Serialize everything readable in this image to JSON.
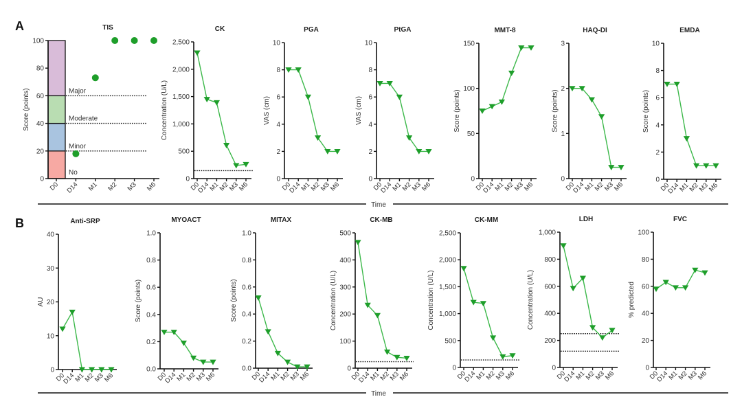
{
  "panels": [
    {
      "letter": "A",
      "time_label": "Time"
    },
    {
      "letter": "B",
      "time_label": "Time"
    }
  ],
  "colors": {
    "series": "#1e9e2a",
    "line": "#3cb84a",
    "axis": "#111111",
    "band_no": "#f7a9a3",
    "band_minor": "#a9c4e0",
    "band_moderate": "#b9ddb2",
    "band_major": "#d9bcd9"
  },
  "chart_data": [
    {
      "id": "tis",
      "panel": 0,
      "type": "scatter",
      "title": "TIS",
      "ylabel": "Score (points)",
      "ylim": [
        0,
        100
      ],
      "yticks": [
        "0",
        "20",
        "40",
        "60",
        "80",
        "100"
      ],
      "ytick_values": [
        0,
        20,
        40,
        60,
        80,
        100
      ],
      "categories": [
        "D0",
        "D14",
        "M1",
        "M2",
        "M3",
        "M6"
      ],
      "values": [
        null,
        18,
        73,
        100,
        100,
        100
      ],
      "marker": "circle",
      "bands": [
        {
          "label": "No",
          "from": 0,
          "to": 20,
          "color_key": "band_no"
        },
        {
          "label": "Minor",
          "from": 20,
          "to": 40,
          "color_key": "band_minor"
        },
        {
          "label": "Moderate",
          "from": 40,
          "to": 60,
          "color_key": "band_moderate"
        },
        {
          "label": "Major",
          "from": 60,
          "to": 100,
          "color_key": "band_major"
        }
      ],
      "reference_lines": [
        20,
        40,
        60
      ]
    },
    {
      "id": "ck",
      "panel": 0,
      "type": "line",
      "title": "CK",
      "ylabel": "Concentration (U/L)",
      "ylim": [
        0,
        2500
      ],
      "yticks": [
        "0",
        "500",
        "1,000",
        "1,500",
        "2,000",
        "2,500"
      ],
      "ytick_values": [
        0,
        500,
        1000,
        1500,
        2000,
        2500
      ],
      "categories": [
        "D0",
        "D14",
        "M1",
        "M2",
        "M3",
        "M6"
      ],
      "values": [
        2300,
        1450,
        1390,
        610,
        240,
        260
      ],
      "reference_lines": [
        145
      ]
    },
    {
      "id": "pga",
      "panel": 0,
      "type": "line",
      "title": "PGA",
      "ylabel": "VAS (cm)",
      "ylim": [
        0,
        10
      ],
      "yticks": [
        "0",
        "2",
        "4",
        "6",
        "8",
        "10"
      ],
      "ytick_values": [
        0,
        2,
        4,
        6,
        8,
        10
      ],
      "categories": [
        "D0",
        "D14",
        "M1",
        "M2",
        "M3",
        "M6"
      ],
      "values": [
        8,
        8,
        6,
        3,
        2,
        2
      ],
      "reference_lines": []
    },
    {
      "id": "ptga",
      "panel": 0,
      "type": "line",
      "title": "PtGA",
      "ylabel": "VAS (cm)",
      "ylim": [
        0,
        10
      ],
      "yticks": [
        "0",
        "2",
        "4",
        "6",
        "8",
        "10"
      ],
      "ytick_values": [
        0,
        2,
        4,
        6,
        8,
        10
      ],
      "categories": [
        "D0",
        "D14",
        "M1",
        "M2",
        "M3",
        "M6"
      ],
      "values": [
        7,
        7,
        6,
        3,
        2,
        2
      ],
      "reference_lines": []
    },
    {
      "id": "mmt8",
      "panel": 0,
      "type": "line",
      "title": "MMT-8",
      "ylabel": "Score (points)",
      "ylim": [
        0,
        150
      ],
      "yticks": [
        "0",
        "50",
        "100",
        "150"
      ],
      "ytick_values": [
        0,
        50,
        100,
        150
      ],
      "categories": [
        "D0",
        "D14",
        "M1",
        "M2",
        "M3",
        "M6"
      ],
      "values": [
        75,
        80,
        85,
        117,
        145,
        145
      ],
      "reference_lines": []
    },
    {
      "id": "haqdi",
      "panel": 0,
      "type": "line",
      "title": "HAQ-DI",
      "ylabel": "Score (points)",
      "ylim": [
        0,
        3
      ],
      "yticks": [
        "0",
        "1",
        "2",
        "3"
      ],
      "ytick_values": [
        0,
        1,
        2,
        3
      ],
      "categories": [
        "D0",
        "D14",
        "M1",
        "M2",
        "M3",
        "M6"
      ],
      "values": [
        2.0,
        2.0,
        1.75,
        1.375,
        0.25,
        0.25
      ],
      "reference_lines": []
    },
    {
      "id": "emda",
      "panel": 0,
      "type": "line",
      "title": "EMDA",
      "ylabel": "Score (points)",
      "ylim": [
        0,
        10
      ],
      "yticks": [
        "0",
        "2",
        "4",
        "6",
        "8",
        "10"
      ],
      "ytick_values": [
        0,
        2,
        4,
        6,
        8,
        10
      ],
      "categories": [
        "D0",
        "D14",
        "M1",
        "M2",
        "M3",
        "M6"
      ],
      "values": [
        7,
        7,
        3,
        1,
        1,
        1
      ],
      "reference_lines": []
    },
    {
      "id": "antisrp",
      "panel": 1,
      "type": "line",
      "title": "Anti-SRP",
      "ylabel": "AU",
      "ylim": [
        0,
        40
      ],
      "yticks": [
        "0",
        "10",
        "20",
        "30",
        "40"
      ],
      "ytick_values": [
        0,
        10,
        20,
        30,
        40
      ],
      "categories": [
        "D0",
        "D14",
        "M1",
        "M2",
        "M3",
        "M6"
      ],
      "values": [
        12,
        17,
        0,
        0,
        0,
        0
      ],
      "reference_lines": []
    },
    {
      "id": "myoact",
      "panel": 1,
      "type": "line",
      "title": "MYOACT",
      "ylabel": "Score (points)",
      "ylim": [
        0,
        1.0
      ],
      "yticks": [
        "0.0",
        "0.2",
        "0.4",
        "0.6",
        "0.8",
        "1.0"
      ],
      "ytick_values": [
        0,
        0.2,
        0.4,
        0.6,
        0.8,
        1.0
      ],
      "categories": [
        "D0",
        "D14",
        "M1",
        "M2",
        "M3",
        "M6"
      ],
      "values": [
        0.27,
        0.27,
        0.19,
        0.08,
        0.05,
        0.05
      ],
      "reference_lines": []
    },
    {
      "id": "mitax",
      "panel": 1,
      "type": "line",
      "title": "MITAX",
      "ylabel": "Score (points)",
      "ylim": [
        0,
        1.0
      ],
      "yticks": [
        "0.0",
        "0.2",
        "0.4",
        "0.6",
        "0.8",
        "1.0"
      ],
      "ytick_values": [
        0,
        0.2,
        0.4,
        0.6,
        0.8,
        1.0
      ],
      "categories": [
        "D0",
        "D14",
        "M1",
        "M2",
        "M3",
        "M6"
      ],
      "values": [
        0.52,
        0.27,
        0.11,
        0.045,
        0.01,
        0.01
      ],
      "reference_lines": []
    },
    {
      "id": "ckmb",
      "panel": 1,
      "type": "line",
      "title": "CK-MB",
      "ylabel": "Concentration (U/L)",
      "ylim": [
        0,
        500
      ],
      "yticks": [
        "0",
        "100",
        "200",
        "300",
        "400",
        "500"
      ],
      "ytick_values": [
        0,
        100,
        200,
        300,
        400,
        500
      ],
      "categories": [
        "D0",
        "D14",
        "M1",
        "M2",
        "M3",
        "M6"
      ],
      "values": [
        465,
        233,
        195,
        60,
        40,
        37
      ],
      "reference_lines": [
        24
      ]
    },
    {
      "id": "ckmm",
      "panel": 1,
      "type": "line",
      "title": "CK-MM",
      "ylabel": "Concentration (U/L)",
      "ylim": [
        0,
        2500
      ],
      "yticks": [
        "0",
        "500",
        "1,000",
        "1,500",
        "2,000",
        "2,500"
      ],
      "ytick_values": [
        0,
        500,
        1000,
        1500,
        2000,
        2500
      ],
      "categories": [
        "D0",
        "D14",
        "M1",
        "M2",
        "M3",
        "M6"
      ],
      "values": [
        1840,
        1210,
        1190,
        550,
        200,
        220
      ],
      "reference_lines": [
        140
      ]
    },
    {
      "id": "ldh",
      "panel": 1,
      "type": "line",
      "title": "LDH",
      "ylabel": "Concentration (U/L)",
      "ylim": [
        0,
        1000
      ],
      "yticks": [
        "0",
        "200",
        "400",
        "600",
        "800",
        "1,000"
      ],
      "ytick_values": [
        0,
        200,
        400,
        600,
        800,
        1000
      ],
      "categories": [
        "D0",
        "D14",
        "M1",
        "M2",
        "M3",
        "M6"
      ],
      "values": [
        900,
        585,
        660,
        295,
        220,
        275
      ],
      "reference_lines": [
        120,
        250
      ]
    },
    {
      "id": "fvc",
      "panel": 1,
      "type": "line",
      "title": "FVC",
      "ylabel": "% predicted",
      "ylim": [
        0,
        100
      ],
      "yticks": [
        "0",
        "20",
        "40",
        "60",
        "80",
        "100"
      ],
      "ytick_values": [
        0,
        20,
        40,
        60,
        80,
        100
      ],
      "categories": [
        "D0",
        "D14",
        "M1",
        "M2",
        "M3",
        "M6"
      ],
      "values": [
        58,
        63,
        59,
        59,
        72,
        70
      ],
      "reference_lines": []
    }
  ]
}
